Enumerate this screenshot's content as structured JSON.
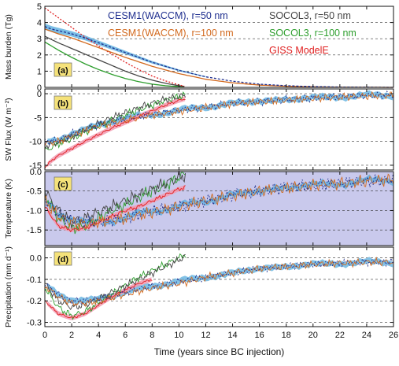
{
  "figure": {
    "xlabel": "Time (years since BC injection)",
    "x_ticks": [
      0,
      2,
      4,
      6,
      8,
      10,
      12,
      14,
      16,
      18,
      20,
      22,
      24,
      26
    ],
    "xlim": [
      0,
      26
    ]
  },
  "legend": [
    {
      "label": "CESM1(WACCM), r=50 nm",
      "color": "#1f2f8f"
    },
    {
      "label": "SOCOL3, r=50 nm",
      "color": "#444444"
    },
    {
      "label": "CESM1(WACCM), r=100 nm",
      "color": "#d2691e"
    },
    {
      "label": "SOCOL3, r=100 nm",
      "color": "#2e9e2e"
    },
    {
      "label": "GISS ModelE",
      "color": "#e02020"
    }
  ],
  "colors": {
    "cesm50": "#1f2f8f",
    "cesm100": "#d2691e",
    "socol50": "#444444",
    "socol100": "#2e9e2e",
    "giss": "#e02020",
    "cesm_band": "#5aaede",
    "giss_band": "#f29ab0",
    "tag_fill": "#f5e27a",
    "temp_shade": "#c9c9ec"
  },
  "chart_data": [
    {
      "type": "line",
      "panel": "(a)",
      "ylabel": "Mass burden (Tg)",
      "ylim": [
        0,
        5
      ],
      "y_ticks": [
        0,
        1,
        2,
        3,
        4,
        5
      ],
      "series": [
        {
          "name": "CESM1(WACCM), r=50 nm",
          "x": [
            0,
            0.5,
            1,
            2,
            3,
            4,
            5,
            6,
            8,
            10,
            12,
            14,
            16,
            18,
            20,
            22,
            26
          ],
          "y": [
            3.75,
            3.6,
            3.5,
            3.3,
            3.05,
            2.75,
            2.45,
            2.15,
            1.55,
            1.05,
            0.65,
            0.38,
            0.2,
            0.1,
            0.05,
            0.02,
            0
          ]
        },
        {
          "name": "CESM1(WACCM), r=100 nm",
          "x": [
            0,
            0.5,
            1,
            2,
            3,
            4,
            5,
            6,
            8,
            10,
            12,
            14,
            16,
            18,
            20,
            22,
            26
          ],
          "y": [
            3.6,
            3.45,
            3.3,
            3.05,
            2.75,
            2.45,
            2.15,
            1.85,
            1.3,
            0.85,
            0.5,
            0.28,
            0.14,
            0.07,
            0.03,
            0.01,
            0
          ]
        },
        {
          "name": "SOCOL3, r=50 nm",
          "x": [
            0,
            0.5,
            1,
            2,
            3,
            4,
            5,
            6,
            7,
            8,
            9,
            10,
            10.5
          ],
          "y": [
            3.15,
            2.95,
            2.75,
            2.4,
            2.05,
            1.7,
            1.35,
            1.0,
            0.7,
            0.45,
            0.25,
            0.1,
            0.05
          ]
        },
        {
          "name": "SOCOL3, r=100 nm",
          "x": [
            0,
            0.5,
            1,
            2,
            3,
            4,
            5,
            6,
            7,
            8,
            9,
            10,
            10.5
          ],
          "y": [
            2.8,
            2.55,
            2.3,
            1.85,
            1.45,
            1.1,
            0.8,
            0.55,
            0.35,
            0.2,
            0.1,
            0.05,
            0.02
          ]
        },
        {
          "name": "GISS ModelE",
          "x": [
            0,
            0.5,
            1,
            2,
            3,
            4,
            5,
            6,
            7,
            8,
            9,
            10,
            10.5
          ],
          "y": [
            4.9,
            4.6,
            4.3,
            3.7,
            3.1,
            2.55,
            2.05,
            1.55,
            1.1,
            0.7,
            0.4,
            0.15,
            0.05
          ]
        }
      ]
    },
    {
      "type": "line",
      "panel": "(b)",
      "ylabel": "SW Flux (W m⁻²)",
      "ylim": [
        -16,
        1
      ],
      "y_ticks": [
        0,
        -5,
        -10,
        -15
      ],
      "series": [
        {
          "name": "CESM1(WACCM), r=50 nm",
          "x": [
            0,
            1,
            2,
            3,
            4,
            6,
            8,
            10,
            12,
            14,
            16,
            18,
            20,
            22,
            24,
            26
          ],
          "y": [
            -10,
            -9.8,
            -8.5,
            -7.5,
            -6.5,
            -5.2,
            -4.3,
            -3.5,
            -2.8,
            -2.0,
            -1.6,
            -1.2,
            -0.9,
            -0.6,
            -0.4,
            -0.3
          ]
        },
        {
          "name": "CESM1(WACCM), r=100 nm",
          "x": [
            0,
            1,
            2,
            3,
            4,
            6,
            8,
            10,
            12,
            14,
            16,
            18,
            20,
            22,
            24,
            26
          ],
          "y": [
            -10.5,
            -10,
            -8.8,
            -7.8,
            -6.8,
            -5.5,
            -4.5,
            -3.7,
            -2.9,
            -2.1,
            -1.7,
            -1.3,
            -1.0,
            -0.7,
            -0.5,
            -0.3
          ]
        },
        {
          "name": "SOCOL3, r=50 nm",
          "x": [
            0,
            1,
            2,
            3,
            4,
            5,
            6,
            7,
            8,
            9,
            10,
            10.5
          ],
          "y": [
            -11,
            -10.2,
            -9,
            -7.5,
            -6.3,
            -5,
            -4,
            -3,
            -2,
            -1.2,
            -0.6,
            -0.3
          ]
        },
        {
          "name": "SOCOL3, r=100 nm",
          "x": [
            0,
            1,
            2,
            3,
            4,
            5,
            6,
            7,
            8,
            9,
            10,
            10.5
          ],
          "y": [
            -12,
            -10.5,
            -9.5,
            -8,
            -6.8,
            -5.6,
            -4.4,
            -3.4,
            -2.4,
            -1.4,
            -0.6,
            -0.2
          ]
        },
        {
          "name": "GISS ModelE",
          "x": [
            0,
            0.5,
            1,
            2,
            3,
            4,
            5,
            6,
            7,
            8,
            9,
            10,
            10.5
          ],
          "y": [
            -15.5,
            -14,
            -13,
            -11.5,
            -10,
            -8.6,
            -7.2,
            -6,
            -4.8,
            -3.6,
            -2.4,
            -1.4,
            -1
          ]
        }
      ]
    },
    {
      "type": "line",
      "panel": "(c)",
      "ylabel": "Temperature (K)",
      "ylim": [
        -1.9,
        0
      ],
      "y_ticks": [
        0.0,
        -0.5,
        -1.0,
        -1.5
      ],
      "series": [
        {
          "name": "CESM1(WACCM), r=50 nm",
          "x": [
            0,
            1,
            2,
            3,
            4,
            6,
            8,
            10,
            12,
            14,
            16,
            18,
            20,
            22,
            24,
            26
          ],
          "y": [
            -0.7,
            -1.1,
            -1.25,
            -1.3,
            -1.3,
            -1.2,
            -1.0,
            -0.9,
            -0.75,
            -0.6,
            -0.5,
            -0.4,
            -0.35,
            -0.3,
            -0.25,
            -0.2
          ]
        },
        {
          "name": "CESM1(WACCM), r=100 nm",
          "x": [
            0,
            1,
            2,
            3,
            4,
            6,
            8,
            10,
            12,
            14,
            16,
            18,
            20,
            22,
            24,
            26
          ],
          "y": [
            -0.75,
            -1.15,
            -1.3,
            -1.35,
            -1.3,
            -1.2,
            -1.05,
            -0.9,
            -0.75,
            -0.62,
            -0.5,
            -0.42,
            -0.35,
            -0.3,
            -0.25,
            -0.2
          ]
        },
        {
          "name": "SOCOL3, r=50 nm",
          "x": [
            0,
            1,
            2,
            3,
            4,
            5,
            6,
            7,
            8,
            9,
            10,
            10.5
          ],
          "y": [
            -0.5,
            -1.0,
            -1.3,
            -1.2,
            -1.05,
            -0.9,
            -0.75,
            -0.6,
            -0.45,
            -0.3,
            -0.15,
            -0.1
          ]
        },
        {
          "name": "SOCOL3, r=100 nm",
          "x": [
            0,
            1,
            2,
            3,
            4,
            5,
            6,
            7,
            8,
            9,
            10,
            10.5
          ],
          "y": [
            -0.6,
            -1.2,
            -1.45,
            -1.4,
            -1.2,
            -1.0,
            -0.85,
            -0.65,
            -0.5,
            -0.35,
            -0.15,
            -0.05
          ]
        },
        {
          "name": "GISS ModelE",
          "x": [
            0,
            1,
            2,
            3,
            4,
            5,
            6,
            7,
            8,
            9,
            10,
            10.5
          ],
          "y": [
            -0.9,
            -1.4,
            -1.5,
            -1.45,
            -1.3,
            -1.15,
            -1.0,
            -0.9,
            -0.75,
            -0.6,
            -0.45,
            -0.4
          ]
        }
      ]
    },
    {
      "type": "line",
      "panel": "(d)",
      "ylabel": "Precipitation (mm d⁻¹)",
      "ylim": [
        -0.32,
        0.05
      ],
      "y_ticks": [
        0.0,
        -0.1,
        -0.2,
        -0.3
      ],
      "series": [
        {
          "name": "CESM1(WACCM), r=50 nm",
          "x": [
            0,
            1,
            2,
            3,
            4,
            6,
            8,
            10,
            12,
            14,
            16,
            18,
            20,
            22,
            24,
            26
          ],
          "y": [
            -0.12,
            -0.17,
            -0.2,
            -0.2,
            -0.19,
            -0.16,
            -0.13,
            -0.11,
            -0.09,
            -0.07,
            -0.05,
            -0.04,
            -0.03,
            -0.025,
            -0.02,
            -0.02
          ]
        },
        {
          "name": "CESM1(WACCM), r=100 nm",
          "x": [
            0,
            1,
            2,
            3,
            4,
            6,
            8,
            10,
            12,
            14,
            16,
            18,
            20,
            22,
            24,
            26
          ],
          "y": [
            -0.13,
            -0.18,
            -0.21,
            -0.21,
            -0.2,
            -0.17,
            -0.14,
            -0.12,
            -0.09,
            -0.07,
            -0.05,
            -0.04,
            -0.03,
            -0.025,
            -0.02,
            -0.02
          ]
        },
        {
          "name": "SOCOL3, r=50 nm",
          "x": [
            0,
            1,
            2,
            3,
            4,
            5,
            6,
            7,
            8,
            9,
            10,
            10.5
          ],
          "y": [
            -0.12,
            -0.2,
            -0.23,
            -0.22,
            -0.19,
            -0.16,
            -0.13,
            -0.1,
            -0.07,
            -0.04,
            -0.01,
            0.01
          ]
        },
        {
          "name": "SOCOL3, r=100 nm",
          "x": [
            0,
            1,
            2,
            3,
            4,
            5,
            6,
            7,
            8,
            9,
            10,
            10.5
          ],
          "y": [
            -0.14,
            -0.23,
            -0.27,
            -0.25,
            -0.21,
            -0.17,
            -0.13,
            -0.09,
            -0.06,
            -0.03,
            0.0,
            0.02
          ]
        },
        {
          "name": "GISS ModelE",
          "x": [
            0,
            1,
            2,
            3,
            4,
            5,
            6,
            7,
            8
          ],
          "y": [
            -0.2,
            -0.26,
            -0.28,
            -0.26,
            -0.22,
            -0.18,
            -0.15,
            -0.12,
            -0.1
          ]
        }
      ]
    }
  ]
}
